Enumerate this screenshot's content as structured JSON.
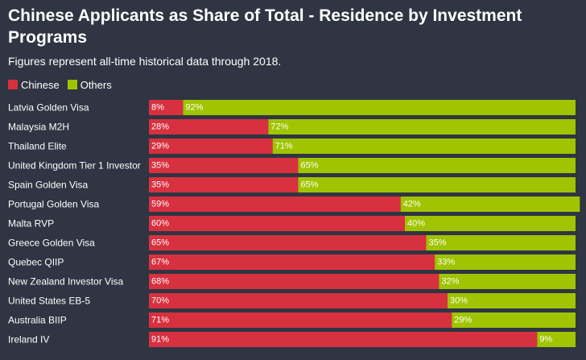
{
  "title": "Chinese Applicants as Share of Total - Residence by Investment Programs",
  "subtitle": "Figures represent all-time historical data through 2018.",
  "colors": {
    "chinese": "#d7303f",
    "others": "#a0c400",
    "background": "#2f3542"
  },
  "legend": [
    {
      "label": "Chinese",
      "key": "chinese"
    },
    {
      "label": "Others",
      "key": "others"
    }
  ],
  "chart_data": {
    "type": "bar",
    "orientation": "horizontal",
    "stacked": true,
    "title": "Chinese Applicants as Share of Total - Residence by Investment Programs",
    "subtitle": "Figures represent all-time historical data through 2018.",
    "legend_position": "top-left",
    "xlim": [
      0,
      100
    ],
    "categories": [
      "Latvia Golden Visa",
      "Malaysia M2H",
      "Thailand Elite",
      "United Kingdom Tier 1 Investor",
      "Spain Golden Visa",
      "Portugal Golden Visa",
      "Malta RVP",
      "Greece Golden Visa",
      "Quebec QIIP",
      "New Zealand Investor Visa",
      "United States EB-5",
      "Australia BIIP",
      "Ireland IV"
    ],
    "series": [
      {
        "name": "Chinese",
        "values": [
          8,
          28,
          29,
          35,
          35,
          59,
          60,
          65,
          67,
          68,
          70,
          71,
          91
        ]
      },
      {
        "name": "Others",
        "values": [
          92,
          72,
          71,
          65,
          65,
          42,
          40,
          35,
          33,
          32,
          30,
          29,
          9
        ]
      }
    ]
  }
}
